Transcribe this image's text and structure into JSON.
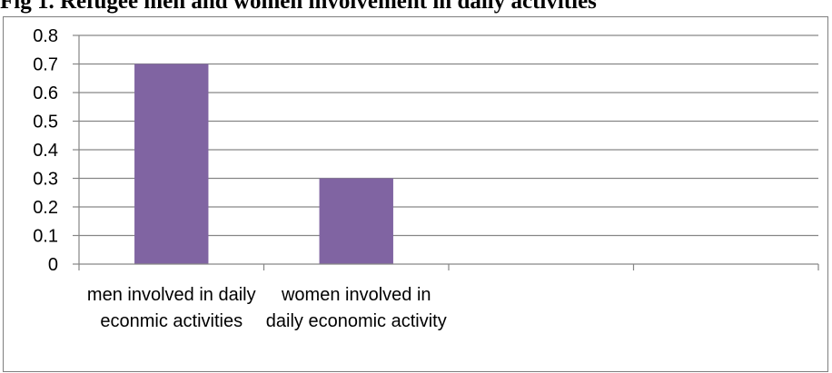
{
  "figure": {
    "title": "Fig 1. Refugee men and women involvement in daily activities"
  },
  "chart_data": {
    "type": "bar",
    "categories": [
      "men involved in daily econmic activities",
      "women involved in daily economic activity",
      "",
      ""
    ],
    "values": [
      0.7,
      0.3,
      null,
      null
    ],
    "yticks": [
      "0",
      "0.1",
      "0.2",
      "0.3",
      "0.4",
      "0.5",
      "0.6",
      "0.7",
      "0.8"
    ],
    "ylim": [
      0,
      0.8
    ],
    "grid": true,
    "legend": "none",
    "bar_color": "#8064a2",
    "grid_color": "#868686"
  }
}
